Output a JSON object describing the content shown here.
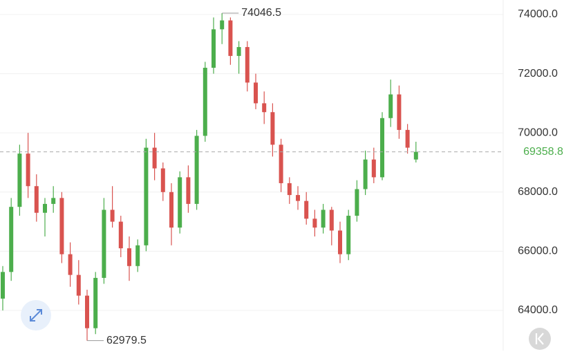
{
  "chart_data": {
    "type": "candlestick",
    "open": [
      64400,
      65300,
      67500,
      69300,
      68200,
      67300,
      67600,
      67800,
      65900,
      65200,
      64500,
      63400,
      65100,
      67400,
      67000,
      66100,
      65500,
      66200,
      69500,
      68800,
      68000,
      66800,
      68500,
      67600,
      69900,
      72200,
      73500,
      73800,
      72600,
      72900,
      71700,
      71000,
      70700,
      69600,
      68300,
      67900,
      67700,
      67100,
      66800,
      67400,
      66700,
      65900,
      67200,
      68100,
      69100,
      68500,
      70500,
      71300,
      70100,
      69100
    ],
    "high": [
      65500,
      67800,
      69600,
      70000,
      68600,
      67800,
      68200,
      68000,
      66300,
      65700,
      64700,
      65300,
      67800,
      68200,
      67200,
      66500,
      66400,
      69800,
      70000,
      69000,
      68300,
      68700,
      68900,
      70100,
      72400,
      73900,
      74046.5,
      73900,
      73100,
      73100,
      72000,
      71400,
      71000,
      69800,
      68500,
      68200,
      68000,
      67400,
      67600,
      67500,
      67000,
      67400,
      68400,
      69400,
      69500,
      70700,
      71800,
      71600,
      70300,
      69700
    ],
    "low": [
      64000,
      65000,
      67200,
      67800,
      67000,
      66500,
      67300,
      65600,
      64800,
      64200,
      62979.5,
      63200,
      64900,
      66800,
      65800,
      65000,
      65300,
      66000,
      68400,
      67700,
      66200,
      66600,
      67300,
      67400,
      69700,
      72000,
      73000,
      72300,
      72000,
      71400,
      70800,
      70300,
      69200,
      68000,
      67600,
      67400,
      66900,
      66500,
      66600,
      66200,
      65600,
      65700,
      67000,
      67900,
      68300,
      68400,
      70200,
      69800,
      69300,
      69000
    ],
    "close": [
      65300,
      67500,
      69300,
      68200,
      67300,
      67600,
      67800,
      65900,
      65200,
      64500,
      63400,
      65100,
      67400,
      67000,
      66100,
      65500,
      66200,
      69500,
      68800,
      68000,
      66800,
      68500,
      67600,
      69900,
      72200,
      73500,
      73800,
      72600,
      72900,
      71700,
      71000,
      70700,
      69600,
      68300,
      67900,
      67700,
      67100,
      66800,
      67400,
      66700,
      65900,
      67200,
      68100,
      69100,
      68500,
      70500,
      71300,
      70100,
      69500,
      69358.8
    ],
    "up_color": "#4cae4c",
    "down_color": "#d9534f",
    "ylim": [
      62645,
      74490
    ],
    "yticks": [
      {
        "value": 64000,
        "label": "64000.0"
      },
      {
        "value": 66000,
        "label": "66000.0"
      },
      {
        "value": 68000,
        "label": "68000.0"
      },
      {
        "value": 70000,
        "label": "70000.0"
      },
      {
        "value": 72000,
        "label": "72000.0"
      },
      {
        "value": 74000,
        "label": "74000.0"
      }
    ],
    "grid": true
  }
}
